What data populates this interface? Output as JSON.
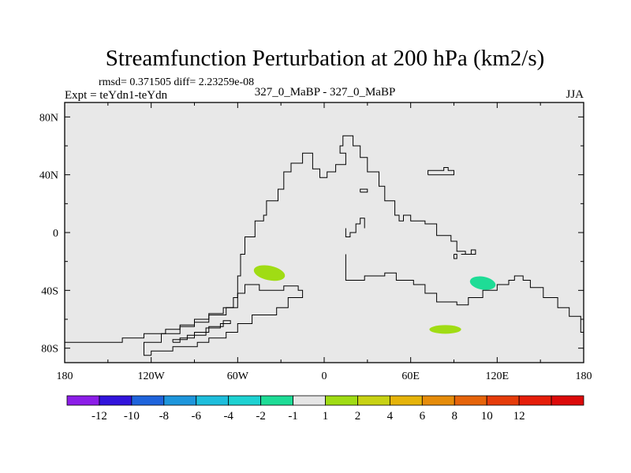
{
  "chart_data": {
    "type": "heatmap",
    "title": "Streamfunction Perturbation at 200 hPa (km2/s)",
    "stats_text": "rmsd= 0.371505 diff= 2.23259e-08",
    "experiment": "Expt = teYdn1-teYdn",
    "center_label": "327_0_MaBP - 327_0_MaBP",
    "season": "JJA",
    "x_ticks": [
      {
        "value": -180,
        "label": "180"
      },
      {
        "value": -120,
        "label": "120W"
      },
      {
        "value": -60,
        "label": "60W"
      },
      {
        "value": 0,
        "label": "0"
      },
      {
        "value": 60,
        "label": "60E"
      },
      {
        "value": 120,
        "label": "120E"
      },
      {
        "value": 180,
        "label": "180"
      }
    ],
    "y_ticks": [
      {
        "value": 80,
        "label": "80N"
      },
      {
        "value": 40,
        "label": "40N"
      },
      {
        "value": 0,
        "label": "0"
      },
      {
        "value": -40,
        "label": "40S"
      },
      {
        "value": -80,
        "label": "80S"
      }
    ],
    "xlim": [
      -180,
      180
    ],
    "ylim": [
      -90,
      90
    ],
    "background_color": "#e8e8e8",
    "colorbar": {
      "colors": [
        "#8c1ee8",
        "#3214dc",
        "#1f64dc",
        "#1e96dc",
        "#1ebedc",
        "#1ed2d2",
        "#1edc96",
        "#e6e6e6",
        "#a0dc14",
        "#c8d214",
        "#e6b40a",
        "#e68c0a",
        "#e6640a",
        "#e63c0a",
        "#e61e0a",
        "#dc0a0a"
      ],
      "labels": [
        "-12",
        "-10",
        "-8",
        "-6",
        "-4",
        "-2",
        "-1",
        "1",
        "2",
        "4",
        "6",
        "8",
        "10",
        "12"
      ]
    },
    "anomalies": [
      {
        "name": "south-atlantic-positive",
        "lon": -38,
        "lat": -28,
        "lon_radius": 11,
        "lat_radius": 5,
        "rotation": 12,
        "color": "#a0dc14"
      },
      {
        "name": "south-indian-negative",
        "lon": 110,
        "lat": -35,
        "lon_radius": 9,
        "lat_radius": 4.5,
        "rotation": 10,
        "color": "#1edc96"
      },
      {
        "name": "southern-ocean-positive",
        "lon": 84,
        "lat": -67,
        "lon_radius": 11,
        "lat_radius": 3,
        "rotation": 0,
        "color": "#a0dc14"
      }
    ],
    "coastlines": [
      [
        [
          -180,
          -76
        ],
        [
          -140,
          -76
        ],
        [
          -140,
          -73
        ],
        [
          -125,
          -73
        ],
        [
          -125,
          -70
        ],
        [
          -110,
          -70
        ],
        [
          -110,
          -67
        ],
        [
          -100,
          -67
        ],
        [
          -100,
          -64
        ],
        [
          -90,
          -64
        ],
        [
          -90,
          -60
        ],
        [
          -80,
          -60
        ],
        [
          -80,
          -56
        ],
        [
          -70,
          -56
        ],
        [
          -70,
          -52
        ],
        [
          -63,
          -52
        ],
        [
          -63,
          -45
        ],
        [
          -60,
          -45
        ],
        [
          -60,
          -30
        ],
        [
          -58,
          -30
        ],
        [
          -58,
          -15
        ],
        [
          -55,
          -15
        ],
        [
          -55,
          -3
        ],
        [
          -48,
          -3
        ],
        [
          -48,
          8
        ],
        [
          -42,
          8
        ],
        [
          -42,
          12
        ],
        [
          -40,
          12
        ],
        [
          -40,
          22
        ],
        [
          -32,
          22
        ],
        [
          -32,
          30
        ],
        [
          -28,
          30
        ],
        [
          -28,
          42
        ],
        [
          -23,
          42
        ],
        [
          -23,
          48
        ],
        [
          -15,
          48
        ],
        [
          -15,
          55
        ],
        [
          -8,
          55
        ],
        [
          -8,
          44
        ],
        [
          -3,
          44
        ],
        [
          -3,
          38
        ],
        [
          2,
          38
        ],
        [
          2,
          42
        ],
        [
          8,
          42
        ],
        [
          8,
          47
        ],
        [
          15,
          47
        ],
        [
          15,
          55
        ],
        [
          11,
          55
        ],
        [
          11,
          60
        ],
        [
          13,
          60
        ],
        [
          13,
          67
        ],
        [
          20,
          67
        ],
        [
          20,
          60
        ],
        [
          25,
          60
        ],
        [
          25,
          52
        ],
        [
          30,
          52
        ],
        [
          30,
          42
        ],
        [
          38,
          42
        ],
        [
          38,
          32
        ],
        [
          42,
          32
        ],
        [
          42,
          22
        ],
        [
          49,
          22
        ],
        [
          49,
          12
        ],
        [
          52,
          12
        ],
        [
          52,
          8
        ],
        [
          55,
          8
        ],
        [
          55,
          12
        ],
        [
          60,
          12
        ],
        [
          60,
          8
        ],
        [
          70,
          8
        ],
        [
          70,
          6
        ],
        [
          78,
          6
        ],
        [
          78,
          -2
        ],
        [
          88,
          -2
        ],
        [
          88,
          -6
        ],
        [
          92,
          -6
        ],
        [
          92,
          -13
        ],
        [
          98,
          -13
        ],
        [
          98,
          -15
        ],
        [
          102,
          -15
        ],
        [
          102,
          -12
        ],
        [
          105,
          -12
        ],
        [
          105,
          -15
        ],
        [
          95,
          -15
        ]
      ],
      [
        [
          15,
          3
        ],
        [
          15,
          -3
        ],
        [
          18,
          -3
        ],
        [
          18,
          0
        ],
        [
          22,
          0
        ],
        [
          22,
          6
        ],
        [
          25,
          6
        ],
        [
          25,
          10
        ],
        [
          28,
          10
        ],
        [
          28,
          3
        ]
      ],
      [
        [
          15,
          -15
        ],
        [
          15,
          -33
        ],
        [
          28,
          -33
        ],
        [
          28,
          -30
        ],
        [
          42,
          -30
        ],
        [
          42,
          -28
        ],
        [
          50,
          -28
        ],
        [
          50,
          -33
        ],
        [
          62,
          -33
        ],
        [
          62,
          -36
        ],
        [
          70,
          -36
        ],
        [
          70,
          -42
        ],
        [
          78,
          -42
        ],
        [
          78,
          -48
        ],
        [
          92,
          -48
        ],
        [
          92,
          -50
        ],
        [
          100,
          -50
        ],
        [
          100,
          -45
        ],
        [
          110,
          -45
        ],
        [
          110,
          -40
        ],
        [
          120,
          -40
        ],
        [
          120,
          -36
        ],
        [
          128,
          -36
        ],
        [
          128,
          -33
        ],
        [
          132,
          -33
        ],
        [
          132,
          -30
        ],
        [
          138,
          -30
        ],
        [
          138,
          -33
        ],
        [
          143,
          -33
        ],
        [
          143,
          -38
        ],
        [
          152,
          -38
        ],
        [
          152,
          -45
        ],
        [
          162,
          -45
        ],
        [
          162,
          -52
        ],
        [
          170,
          -52
        ],
        [
          170,
          -58
        ],
        [
          178,
          -58
        ],
        [
          178,
          -69
        ],
        [
          180,
          -69
        ]
      ],
      [
        [
          -120,
          -85
        ],
        [
          -120,
          -82
        ],
        [
          -105,
          -82
        ],
        [
          -105,
          -79
        ],
        [
          -88,
          -79
        ],
        [
          -88,
          -76
        ],
        [
          -80,
          -76
        ],
        [
          -80,
          -73
        ],
        [
          -68,
          -73
        ],
        [
          -68,
          -69
        ],
        [
          -60,
          -69
        ],
        [
          -60,
          -63
        ],
        [
          -50,
          -63
        ],
        [
          -50,
          -57
        ],
        [
          -33,
          -57
        ],
        [
          -33,
          -52
        ],
        [
          -25,
          -52
        ],
        [
          -25,
          -45
        ],
        [
          -15,
          -45
        ],
        [
          -15,
          -40
        ],
        [
          -18,
          -40
        ],
        [
          -18,
          -37
        ],
        [
          -28,
          -37
        ],
        [
          -28,
          -40
        ],
        [
          -45,
          -40
        ],
        [
          -45,
          -36
        ],
        [
          -55,
          -36
        ],
        [
          -55,
          -42
        ],
        [
          -60,
          -42
        ],
        [
          -60,
          -52
        ],
        [
          -68,
          -52
        ],
        [
          -68,
          -57
        ],
        [
          -80,
          -57
        ],
        [
          -80,
          -62
        ],
        [
          -90,
          -62
        ],
        [
          -90,
          -65
        ],
        [
          -100,
          -65
        ],
        [
          -100,
          -70
        ],
        [
          -113,
          -70
        ],
        [
          -113,
          -76
        ],
        [
          -125,
          -76
        ],
        [
          -125,
          -85
        ],
        [
          -120,
          -85
        ]
      ],
      [
        [
          -105,
          -76
        ],
        [
          -100,
          -76
        ],
        [
          -100,
          -73
        ],
        [
          -90,
          -73
        ],
        [
          -90,
          -69
        ],
        [
          -80,
          -69
        ],
        [
          -80,
          -65
        ],
        [
          -70,
          -65
        ],
        [
          -70,
          -61
        ],
        [
          -65,
          -61
        ],
        [
          -65,
          -63
        ],
        [
          -72,
          -63
        ],
        [
          -72,
          -66
        ],
        [
          -82,
          -66
        ],
        [
          -82,
          -71
        ],
        [
          -95,
          -71
        ],
        [
          -95,
          -74
        ],
        [
          -105,
          -74
        ],
        [
          -105,
          -76
        ]
      ],
      [
        [
          72,
          40
        ],
        [
          72,
          43
        ],
        [
          83,
          43
        ],
        [
          83,
          45
        ],
        [
          86,
          45
        ],
        [
          86,
          43
        ],
        [
          90,
          43
        ],
        [
          90,
          40
        ],
        [
          72,
          40
        ]
      ],
      [
        [
          25,
          28
        ],
        [
          25,
          30
        ],
        [
          30,
          30
        ],
        [
          30,
          28
        ],
        [
          25,
          28
        ]
      ],
      [
        [
          90,
          -15
        ],
        [
          90,
          -18
        ],
        [
          92,
          -18
        ],
        [
          92,
          -15
        ],
        [
          90,
          -15
        ]
      ]
    ]
  }
}
